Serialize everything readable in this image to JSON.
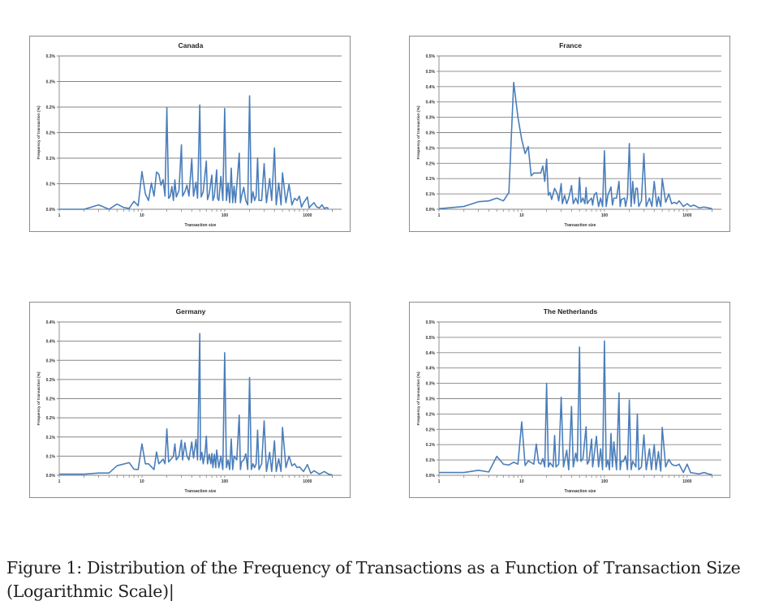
{
  "figure": {
    "caption_line1": "Figure 1: Distribution of the Frequency of Transactions as a Function of Transaction Size",
    "caption_line2": "(Logarithmic Scale)|"
  },
  "colors": {
    "line": "#4a7ebb",
    "grid": "#868686",
    "border": "#8c8c8c"
  },
  "chart_data": [
    {
      "id": "canada",
      "type": "line",
      "title": "Canada",
      "xlabel": "Transaction size",
      "ylabel": "Frequency of transaction (%)",
      "xscale": "log",
      "xlim": [
        1,
        2000
      ],
      "ylim": [
        0,
        0.35
      ],
      "grid": true,
      "xticks": [
        "1",
        "10",
        "100",
        "1000"
      ],
      "yticks": [
        "0.0%",
        "0.1%",
        "0.1%",
        "0.2%",
        "0.2%",
        "0.3%",
        "0.3%"
      ],
      "x": [
        1,
        2,
        3,
        4,
        5,
        6,
        7,
        8,
        9,
        10,
        11,
        12,
        13,
        14,
        15,
        16,
        17,
        18,
        19,
        20,
        21,
        22,
        23,
        24,
        25,
        26,
        28,
        30,
        31,
        33,
        35,
        37,
        40,
        42,
        45,
        47,
        50,
        52,
        55,
        60,
        62,
        65,
        70,
        72,
        75,
        80,
        82,
        85,
        90,
        95,
        100,
        105,
        110,
        115,
        120,
        125,
        130,
        135,
        140,
        150,
        155,
        160,
        170,
        180,
        190,
        200,
        210,
        220,
        230,
        240,
        250,
        260,
        280,
        300,
        320,
        350,
        370,
        400,
        420,
        450,
        480,
        500,
        550,
        600,
        650,
        700,
        750,
        800,
        850,
        900,
        1000,
        1050,
        1100,
        1200,
        1300,
        1400,
        1500,
        1600,
        1700,
        1800
      ],
      "y": [
        0.0,
        0.0,
        0.01,
        0.0,
        0.012,
        0.004,
        0.002,
        0.018,
        0.008,
        0.086,
        0.035,
        0.02,
        0.06,
        0.03,
        0.085,
        0.08,
        0.055,
        0.068,
        0.03,
        0.232,
        0.025,
        0.03,
        0.052,
        0.02,
        0.067,
        0.028,
        0.043,
        0.147,
        0.03,
        0.04,
        0.055,
        0.03,
        0.115,
        0.03,
        0.062,
        0.025,
        0.238,
        0.028,
        0.04,
        0.11,
        0.022,
        0.035,
        0.078,
        0.02,
        0.03,
        0.09,
        0.025,
        0.02,
        0.075,
        0.02,
        0.23,
        0.02,
        0.06,
        0.015,
        0.094,
        0.015,
        0.053,
        0.015,
        0.053,
        0.128,
        0.015,
        0.03,
        0.05,
        0.02,
        0.01,
        0.259,
        0.015,
        0.04,
        0.02,
        0.03,
        0.117,
        0.02,
        0.02,
        0.104,
        0.015,
        0.07,
        0.02,
        0.14,
        0.01,
        0.06,
        0.01,
        0.083,
        0.015,
        0.057,
        0.01,
        0.025,
        0.02,
        0.03,
        0.005,
        0.015,
        0.028,
        0.003,
        0.008,
        0.015,
        0.005,
        0.003,
        0.01,
        0.002,
        0.004,
        0.002
      ]
    },
    {
      "id": "france",
      "type": "line",
      "title": "France",
      "xlabel": "Transaction size",
      "ylabel": "Frequency of transaction (%)",
      "xscale": "log",
      "xlim": [
        1,
        2000
      ],
      "ylim": [
        0,
        0.55
      ],
      "grid": true,
      "xticks": [
        "1",
        "10",
        "100",
        "1000"
      ],
      "yticks": [
        "0.0%",
        "0.1%",
        "0.1%",
        "0.2%",
        "0.2%",
        "0.3%",
        "0.3%",
        "0.4%",
        "0.4%",
        "0.5%",
        "0.5%"
      ],
      "x": [
        1,
        2,
        3,
        4,
        5,
        6,
        7,
        8,
        9,
        10,
        11,
        12,
        13,
        14,
        17,
        18,
        19,
        20,
        21,
        22,
        23,
        25,
        27,
        28,
        30,
        31,
        33,
        35,
        37,
        40,
        42,
        45,
        48,
        50,
        52,
        55,
        58,
        60,
        62,
        65,
        70,
        72,
        75,
        80,
        85,
        90,
        95,
        100,
        105,
        110,
        120,
        125,
        130,
        140,
        150,
        155,
        160,
        175,
        180,
        190,
        200,
        210,
        220,
        230,
        240,
        250,
        260,
        280,
        300,
        320,
        350,
        375,
        400,
        430,
        450,
        480,
        500,
        550,
        600,
        650,
        700,
        750,
        800,
        900,
        1000,
        1100,
        1200,
        1400,
        1600,
        1800,
        2000
      ],
      "y": [
        0.002,
        0.01,
        0.027,
        0.03,
        0.04,
        0.03,
        0.06,
        0.455,
        0.33,
        0.25,
        0.2,
        0.225,
        0.12,
        0.13,
        0.13,
        0.155,
        0.1,
        0.18,
        0.05,
        0.06,
        0.035,
        0.075,
        0.055,
        0.03,
        0.092,
        0.02,
        0.05,
        0.02,
        0.04,
        0.085,
        0.02,
        0.04,
        0.02,
        0.114,
        0.025,
        0.04,
        0.02,
        0.078,
        0.02,
        0.03,
        0.04,
        0.015,
        0.05,
        0.06,
        0.01,
        0.04,
        0.01,
        0.21,
        0.01,
        0.05,
        0.08,
        0.015,
        0.04,
        0.04,
        0.1,
        0.01,
        0.035,
        0.04,
        0.01,
        0.045,
        0.236,
        0.01,
        0.1,
        0.02,
        0.075,
        0.075,
        0.01,
        0.03,
        0.2,
        0.01,
        0.04,
        0.01,
        0.1,
        0.01,
        0.045,
        0.01,
        0.11,
        0.025,
        0.055,
        0.02,
        0.025,
        0.02,
        0.03,
        0.01,
        0.02,
        0.01,
        0.015,
        0.005,
        0.008,
        0.005,
        0.002
      ]
    },
    {
      "id": "germany",
      "type": "line",
      "title": "Germany",
      "xlabel": "Transaction size",
      "ylabel": "Frequency of transaction (%)",
      "xscale": "log",
      "xlim": [
        1,
        2000
      ],
      "ylim": [
        0,
        0.4
      ],
      "grid": true,
      "xticks": [
        "1",
        "10",
        "100",
        "1000"
      ],
      "yticks": [
        "0.0%",
        "0.1%",
        "0.1%",
        "0.2%",
        "0.2%",
        "0.3%",
        "0.3%",
        "0.4%",
        "0.4%"
      ],
      "x": [
        1,
        2,
        3,
        4,
        5,
        7,
        8,
        9,
        10,
        11,
        12,
        14,
        15,
        16,
        18,
        19,
        20,
        21,
        22,
        24,
        25,
        26,
        28,
        30,
        31,
        33,
        35,
        37,
        40,
        42,
        45,
        47,
        50,
        51,
        53,
        55,
        58,
        60,
        62,
        65,
        68,
        70,
        72,
        75,
        78,
        80,
        85,
        90,
        95,
        100,
        105,
        110,
        115,
        120,
        125,
        130,
        140,
        150,
        155,
        160,
        170,
        180,
        190,
        200,
        210,
        220,
        230,
        240,
        250,
        260,
        280,
        300,
        320,
        350,
        370,
        400,
        420,
        450,
        480,
        500,
        550,
        600,
        650,
        700,
        750,
        800,
        900,
        1000,
        1100,
        1200,
        1400,
        1600,
        1800,
        2000
      ],
      "y": [
        0.003,
        0.003,
        0.006,
        0.006,
        0.025,
        0.033,
        0.016,
        0.015,
        0.082,
        0.03,
        0.03,
        0.015,
        0.061,
        0.03,
        0.042,
        0.03,
        0.121,
        0.035,
        0.04,
        0.05,
        0.082,
        0.04,
        0.05,
        0.092,
        0.04,
        0.085,
        0.05,
        0.04,
        0.087,
        0.045,
        0.094,
        0.04,
        0.37,
        0.04,
        0.06,
        0.03,
        0.06,
        0.102,
        0.03,
        0.055,
        0.03,
        0.057,
        0.02,
        0.055,
        0.02,
        0.066,
        0.02,
        0.05,
        0.015,
        0.32,
        0.02,
        0.04,
        0.015,
        0.095,
        0.015,
        0.05,
        0.04,
        0.157,
        0.015,
        0.035,
        0.04,
        0.056,
        0.015,
        0.255,
        0.015,
        0.03,
        0.02,
        0.03,
        0.118,
        0.015,
        0.03,
        0.142,
        0.01,
        0.06,
        0.01,
        0.09,
        0.01,
        0.043,
        0.01,
        0.125,
        0.02,
        0.05,
        0.025,
        0.03,
        0.02,
        0.022,
        0.01,
        0.028,
        0.005,
        0.012,
        0.003,
        0.01,
        0.003,
        0.001
      ]
    },
    {
      "id": "netherlands",
      "type": "line",
      "title": "The Netherlands",
      "xlabel": "Transaction size",
      "ylabel": "Frequency of transaction (%)",
      "xscale": "log",
      "xlim": [
        1,
        2000
      ],
      "ylim": [
        0,
        0.55
      ],
      "grid": true,
      "xticks": [
        "1",
        "10",
        "100",
        "1000"
      ],
      "yticks": [
        "0.0%",
        "0.1%",
        "0.1%",
        "0.2%",
        "0.2%",
        "0.3%",
        "0.3%",
        "0.4%",
        "0.4%",
        "0.5%",
        "0.5%"
      ],
      "x": [
        1,
        2,
        3,
        4,
        5,
        6,
        7,
        8,
        9,
        10,
        11,
        12,
        14,
        15,
        16,
        17,
        18,
        19,
        20,
        21,
        22,
        24,
        25,
        26,
        28,
        30,
        32,
        35,
        37,
        40,
        42,
        45,
        47,
        50,
        52,
        55,
        60,
        62,
        65,
        70,
        72,
        75,
        80,
        85,
        90,
        95,
        100,
        105,
        110,
        115,
        120,
        125,
        130,
        140,
        150,
        155,
        160,
        170,
        180,
        190,
        200,
        210,
        220,
        230,
        240,
        250,
        260,
        280,
        300,
        320,
        350,
        370,
        400,
        420,
        450,
        480,
        500,
        550,
        600,
        650,
        700,
        750,
        800,
        900,
        1000,
        1100,
        1200,
        1400,
        1600,
        1800,
        2000
      ],
      "y": [
        0.01,
        0.01,
        0.018,
        0.012,
        0.068,
        0.04,
        0.037,
        0.047,
        0.04,
        0.192,
        0.035,
        0.052,
        0.04,
        0.112,
        0.045,
        0.04,
        0.06,
        0.03,
        0.33,
        0.03,
        0.045,
        0.03,
        0.143,
        0.03,
        0.04,
        0.28,
        0.03,
        0.09,
        0.02,
        0.247,
        0.03,
        0.08,
        0.05,
        0.46,
        0.05,
        0.06,
        0.174,
        0.04,
        0.05,
        0.13,
        0.03,
        0.07,
        0.14,
        0.03,
        0.095,
        0.02,
        0.482,
        0.03,
        0.055,
        0.02,
        0.15,
        0.03,
        0.12,
        0.02,
        0.296,
        0.02,
        0.05,
        0.05,
        0.07,
        0.02,
        0.27,
        0.02,
        0.05,
        0.04,
        0.03,
        0.22,
        0.02,
        0.03,
        0.145,
        0.02,
        0.095,
        0.02,
        0.11,
        0.02,
        0.085,
        0.015,
        0.172,
        0.03,
        0.057,
        0.04,
        0.035,
        0.035,
        0.04,
        0.01,
        0.04,
        0.01,
        0.008,
        0.005,
        0.01,
        0.005,
        0.002
      ]
    }
  ]
}
